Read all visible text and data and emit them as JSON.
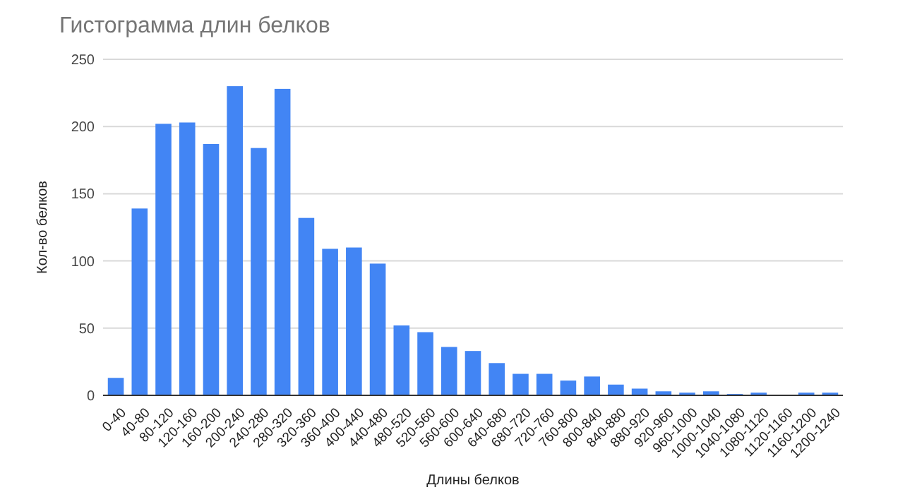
{
  "chart_data": {
    "type": "bar",
    "title": "Гистограмма длин белков",
    "xlabel": "Длины белков",
    "ylabel": "Кол-во белков",
    "categories": [
      "0-40",
      "40-80",
      "80-120",
      "120-160",
      "160-200",
      "200-240",
      "240-280",
      "280-320",
      "320-360",
      "360-400",
      "400-440",
      "440-480",
      "480-520",
      "520-560",
      "560-600",
      "600-640",
      "640-680",
      "680-720",
      "720-760",
      "760-800",
      "800-840",
      "840-880",
      "880-920",
      "920-960",
      "960-1000",
      "1000-1040",
      "1040-1080",
      "1080-1120",
      "1120-1160",
      "1160-1200",
      "1200-1240"
    ],
    "values": [
      13,
      139,
      202,
      203,
      187,
      230,
      184,
      228,
      132,
      109,
      110,
      98,
      52,
      47,
      36,
      33,
      24,
      16,
      16,
      11,
      14,
      8,
      5,
      3,
      2,
      3,
      1,
      2,
      0,
      2,
      2
    ],
    "color": "#4285f4",
    "ylim": [
      0,
      250
    ],
    "yticks": [
      0,
      50,
      100,
      150,
      200,
      250
    ],
    "grid": "y"
  }
}
